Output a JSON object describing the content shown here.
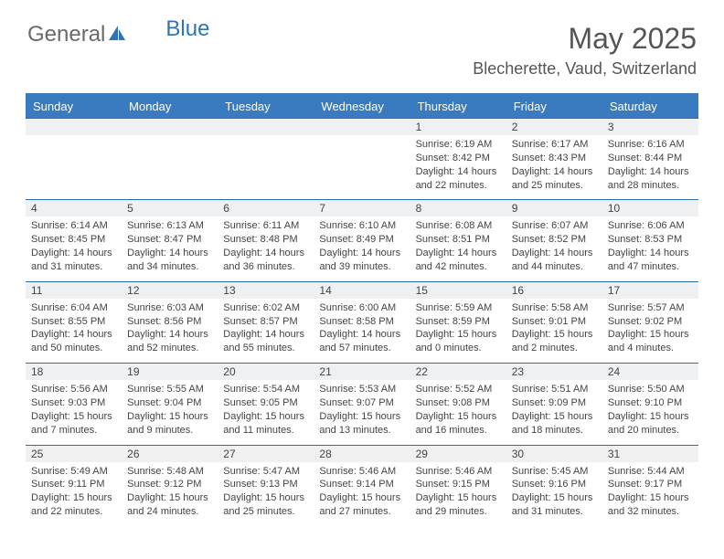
{
  "brand": {
    "part1": "General",
    "part2": "Blue"
  },
  "title": "May 2025",
  "location": "Blecherette, Vaud, Switzerland",
  "colors": {
    "header_bg": "#3a7bbf",
    "header_text": "#ffffff",
    "daynum_bg": "#eef0f1",
    "border": "#2f6fa8",
    "text": "#444444",
    "brand_gray": "#6a6a6a",
    "brand_blue": "#2f75b5"
  },
  "day_headers": [
    "Sunday",
    "Monday",
    "Tuesday",
    "Wednesday",
    "Thursday",
    "Friday",
    "Saturday"
  ],
  "weeks": [
    [
      null,
      null,
      null,
      null,
      {
        "n": "1",
        "sr": "6:19 AM",
        "ss": "8:42 PM",
        "dl": "14 hours and 22 minutes."
      },
      {
        "n": "2",
        "sr": "6:17 AM",
        "ss": "8:43 PM",
        "dl": "14 hours and 25 minutes."
      },
      {
        "n": "3",
        "sr": "6:16 AM",
        "ss": "8:44 PM",
        "dl": "14 hours and 28 minutes."
      }
    ],
    [
      {
        "n": "4",
        "sr": "6:14 AM",
        "ss": "8:45 PM",
        "dl": "14 hours and 31 minutes."
      },
      {
        "n": "5",
        "sr": "6:13 AM",
        "ss": "8:47 PM",
        "dl": "14 hours and 34 minutes."
      },
      {
        "n": "6",
        "sr": "6:11 AM",
        "ss": "8:48 PM",
        "dl": "14 hours and 36 minutes."
      },
      {
        "n": "7",
        "sr": "6:10 AM",
        "ss": "8:49 PM",
        "dl": "14 hours and 39 minutes."
      },
      {
        "n": "8",
        "sr": "6:08 AM",
        "ss": "8:51 PM",
        "dl": "14 hours and 42 minutes."
      },
      {
        "n": "9",
        "sr": "6:07 AM",
        "ss": "8:52 PM",
        "dl": "14 hours and 44 minutes."
      },
      {
        "n": "10",
        "sr": "6:06 AM",
        "ss": "8:53 PM",
        "dl": "14 hours and 47 minutes."
      }
    ],
    [
      {
        "n": "11",
        "sr": "6:04 AM",
        "ss": "8:55 PM",
        "dl": "14 hours and 50 minutes."
      },
      {
        "n": "12",
        "sr": "6:03 AM",
        "ss": "8:56 PM",
        "dl": "14 hours and 52 minutes."
      },
      {
        "n": "13",
        "sr": "6:02 AM",
        "ss": "8:57 PM",
        "dl": "14 hours and 55 minutes."
      },
      {
        "n": "14",
        "sr": "6:00 AM",
        "ss": "8:58 PM",
        "dl": "14 hours and 57 minutes."
      },
      {
        "n": "15",
        "sr": "5:59 AM",
        "ss": "8:59 PM",
        "dl": "15 hours and 0 minutes."
      },
      {
        "n": "16",
        "sr": "5:58 AM",
        "ss": "9:01 PM",
        "dl": "15 hours and 2 minutes."
      },
      {
        "n": "17",
        "sr": "5:57 AM",
        "ss": "9:02 PM",
        "dl": "15 hours and 4 minutes."
      }
    ],
    [
      {
        "n": "18",
        "sr": "5:56 AM",
        "ss": "9:03 PM",
        "dl": "15 hours and 7 minutes."
      },
      {
        "n": "19",
        "sr": "5:55 AM",
        "ss": "9:04 PM",
        "dl": "15 hours and 9 minutes."
      },
      {
        "n": "20",
        "sr": "5:54 AM",
        "ss": "9:05 PM",
        "dl": "15 hours and 11 minutes."
      },
      {
        "n": "21",
        "sr": "5:53 AM",
        "ss": "9:07 PM",
        "dl": "15 hours and 13 minutes."
      },
      {
        "n": "22",
        "sr": "5:52 AM",
        "ss": "9:08 PM",
        "dl": "15 hours and 16 minutes."
      },
      {
        "n": "23",
        "sr": "5:51 AM",
        "ss": "9:09 PM",
        "dl": "15 hours and 18 minutes."
      },
      {
        "n": "24",
        "sr": "5:50 AM",
        "ss": "9:10 PM",
        "dl": "15 hours and 20 minutes."
      }
    ],
    [
      {
        "n": "25",
        "sr": "5:49 AM",
        "ss": "9:11 PM",
        "dl": "15 hours and 22 minutes."
      },
      {
        "n": "26",
        "sr": "5:48 AM",
        "ss": "9:12 PM",
        "dl": "15 hours and 24 minutes."
      },
      {
        "n": "27",
        "sr": "5:47 AM",
        "ss": "9:13 PM",
        "dl": "15 hours and 25 minutes."
      },
      {
        "n": "28",
        "sr": "5:46 AM",
        "ss": "9:14 PM",
        "dl": "15 hours and 27 minutes."
      },
      {
        "n": "29",
        "sr": "5:46 AM",
        "ss": "9:15 PM",
        "dl": "15 hours and 29 minutes."
      },
      {
        "n": "30",
        "sr": "5:45 AM",
        "ss": "9:16 PM",
        "dl": "15 hours and 31 minutes."
      },
      {
        "n": "31",
        "sr": "5:44 AM",
        "ss": "9:17 PM",
        "dl": "15 hours and 32 minutes."
      }
    ]
  ],
  "labels": {
    "sunrise": "Sunrise: ",
    "sunset": "Sunset: ",
    "daylight": "Daylight: "
  }
}
